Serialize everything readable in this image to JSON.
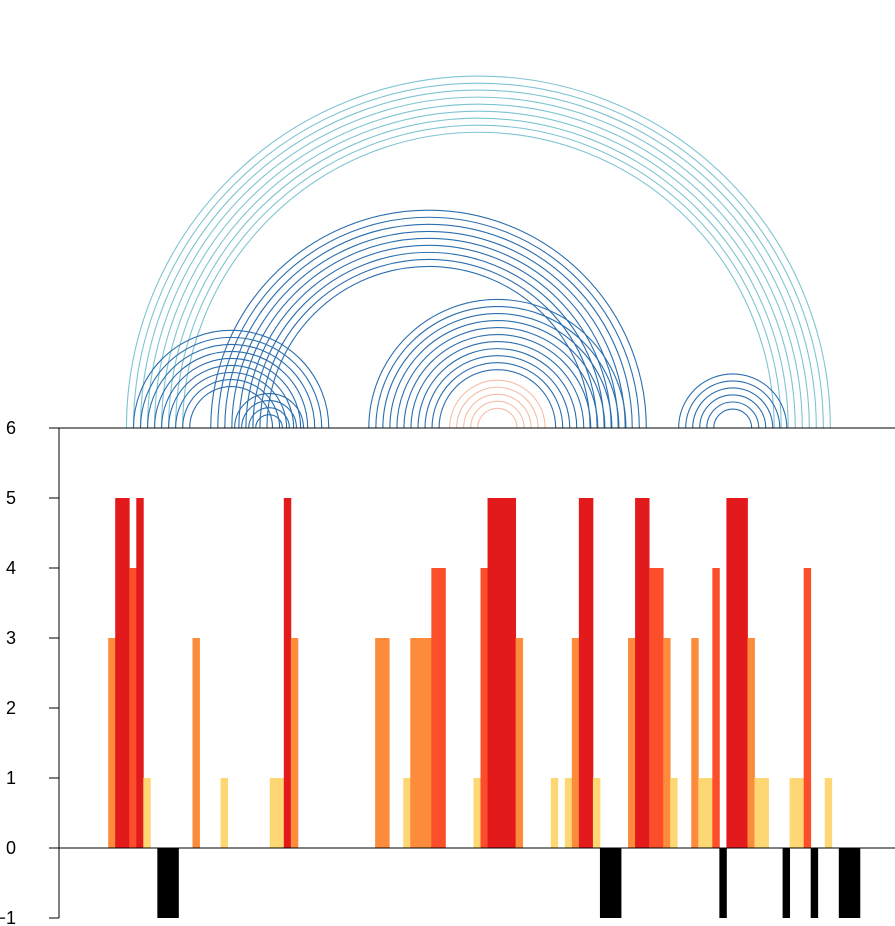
{
  "chart_data": {
    "type": "bar",
    "title": "",
    "xlabel": "",
    "ylabel": "",
    "ylim": [
      -1,
      6
    ],
    "xlim": [
      0,
      119
    ],
    "grid": false,
    "legend": "none",
    "yticks": [
      {
        "value": 6,
        "label": "6"
      },
      {
        "value": 5,
        "label": "5"
      },
      {
        "value": 4,
        "label": "4"
      },
      {
        "value": 3,
        "label": "3"
      },
      {
        "value": 2,
        "label": "2"
      },
      {
        "value": 1,
        "label": "1"
      },
      {
        "value": 0,
        "label": "0"
      },
      {
        "value": -1,
        "label": "−1"
      }
    ],
    "colors": {
      "1": "#fdd774",
      "3": "#fd8b3c",
      "4": "#fc4e2a",
      "5": "#e31a1c",
      "-1": "#000000"
    },
    "bars": [
      {
        "x": 7,
        "value": 3
      },
      {
        "x": 8,
        "value": 5
      },
      {
        "x": 9,
        "value": 5
      },
      {
        "x": 10,
        "value": 4
      },
      {
        "x": 11,
        "value": 5
      },
      {
        "x": 12,
        "value": 1
      },
      {
        "x": 14,
        "value": -1
      },
      {
        "x": 15,
        "value": -1
      },
      {
        "x": 16,
        "value": -1
      },
      {
        "x": 19,
        "value": 3
      },
      {
        "x": 23,
        "value": 1
      },
      {
        "x": 30,
        "value": 1
      },
      {
        "x": 31,
        "value": 1
      },
      {
        "x": 32,
        "value": 5
      },
      {
        "x": 33,
        "value": 3
      },
      {
        "x": 45,
        "value": 3
      },
      {
        "x": 46,
        "value": 3
      },
      {
        "x": 49,
        "value": 1
      },
      {
        "x": 50,
        "value": 3
      },
      {
        "x": 51,
        "value": 3
      },
      {
        "x": 52,
        "value": 3
      },
      {
        "x": 53,
        "value": 4
      },
      {
        "x": 54,
        "value": 4
      },
      {
        "x": 59,
        "value": 1
      },
      {
        "x": 60,
        "value": 4
      },
      {
        "x": 61,
        "value": 5
      },
      {
        "x": 62,
        "value": 5
      },
      {
        "x": 63,
        "value": 5
      },
      {
        "x": 64,
        "value": 5
      },
      {
        "x": 65,
        "value": 3
      },
      {
        "x": 70,
        "value": 1
      },
      {
        "x": 72,
        "value": 1
      },
      {
        "x": 73,
        "value": 3
      },
      {
        "x": 74,
        "value": 5
      },
      {
        "x": 75,
        "value": 5
      },
      {
        "x": 76,
        "value": 1
      },
      {
        "x": 77,
        "value": -1
      },
      {
        "x": 78,
        "value": -1
      },
      {
        "x": 79,
        "value": -1
      },
      {
        "x": 81,
        "value": 3
      },
      {
        "x": 82,
        "value": 5
      },
      {
        "x": 83,
        "value": 5
      },
      {
        "x": 84,
        "value": 4
      },
      {
        "x": 85,
        "value": 4
      },
      {
        "x": 86,
        "value": 3
      },
      {
        "x": 87,
        "value": 1
      },
      {
        "x": 90,
        "value": 3
      },
      {
        "x": 91,
        "value": 1
      },
      {
        "x": 92,
        "value": 1
      },
      {
        "x": 93,
        "value": 4
      },
      {
        "x": 94,
        "value": -1
      },
      {
        "x": 95,
        "value": 5
      },
      {
        "x": 96,
        "value": 5
      },
      {
        "x": 97,
        "value": 5
      },
      {
        "x": 98,
        "value": 3
      },
      {
        "x": 99,
        "value": 1
      },
      {
        "x": 100,
        "value": 1
      },
      {
        "x": 103,
        "value": -1
      },
      {
        "x": 104,
        "value": 1
      },
      {
        "x": 105,
        "value": 1
      },
      {
        "x": 106,
        "value": 4
      },
      {
        "x": 107,
        "value": -1
      },
      {
        "x": 109,
        "value": 1
      },
      {
        "x": 111,
        "value": -1
      },
      {
        "x": 112,
        "value": -1
      },
      {
        "x": 113,
        "value": -1
      }
    ],
    "arcs": [
      {
        "center": 59.7,
        "radii": [
          50.1,
          49.1,
          48.1,
          47.1,
          46.1,
          45.1,
          44.1,
          43.1,
          42.1
        ],
        "color": "#7fc4d3"
      },
      {
        "center": 24.5,
        "radii": [
          13.9,
          12.9,
          11.9,
          10.9,
          9.9,
          8.9,
          7.9,
          6.9,
          5.9
        ],
        "color": "#2b6eae"
      },
      {
        "center": 29.9,
        "radii": [
          4.9,
          3.9,
          2.9,
          1.9
        ],
        "color": "#2b6eae"
      },
      {
        "center": 52.6,
        "radii": [
          31.0,
          30.0,
          29.0,
          28.0,
          27.0,
          26.0,
          25.0,
          24.0,
          23.0
        ],
        "color": "#2b6eae"
      },
      {
        "center": 62.4,
        "radii": [
          18.3,
          17.3,
          16.3,
          15.3,
          14.3,
          13.3,
          12.3,
          11.3,
          10.3,
          9.3,
          8.3
        ],
        "color": "#2b6eae"
      },
      {
        "center": 62.4,
        "radii": [
          6.8,
          5.8,
          4.8,
          3.8,
          2.8
        ],
        "color": "#f4bea6"
      },
      {
        "center": 95.9,
        "radii": [
          7.7,
          6.7,
          5.7,
          4.7,
          3.7,
          2.7
        ],
        "color": "#2b6eae"
      }
    ]
  }
}
